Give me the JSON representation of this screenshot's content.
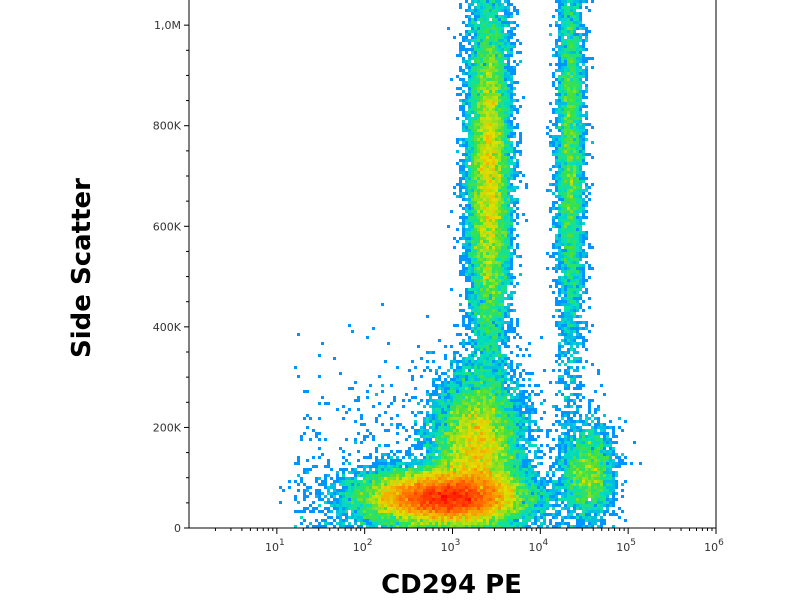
{
  "chart_data": {
    "type": "scatter",
    "title": "",
    "xlabel": "CD294 PE",
    "ylabel": "Side Scatter",
    "x_scale": "log",
    "xlim": [
      1,
      1000000
    ],
    "ylim": [
      0,
      1050000
    ],
    "x_ticks": [
      {
        "value": 10,
        "base": "10",
        "exp": "1"
      },
      {
        "value": 100,
        "base": "10",
        "exp": "2"
      },
      {
        "value": 1000,
        "base": "10",
        "exp": "3"
      },
      {
        "value": 10000,
        "base": "10",
        "exp": "4"
      },
      {
        "value": 100000,
        "base": "10",
        "exp": "5"
      },
      {
        "value": 1000000,
        "base": "10",
        "exp": "6"
      }
    ],
    "y_ticks": [
      {
        "value": 0,
        "label": "0"
      },
      {
        "value": 200000,
        "label": "200K"
      },
      {
        "value": 400000,
        "label": "400K"
      },
      {
        "value": 600000,
        "label": "600K"
      },
      {
        "value": 800000,
        "label": "800K"
      },
      {
        "value": 1000000,
        "label": "1,0M"
      }
    ],
    "grid": false,
    "legend": "none",
    "colormap": [
      "#0000ff",
      "#00a0ff",
      "#00e0c0",
      "#40e040",
      "#e0e000",
      "#ff8000",
      "#ff0000"
    ],
    "populations": [
      {
        "x_center": 800,
        "y_center": 60000,
        "x_spread_decades": 0.45,
        "y_spread": 28000,
        "relative_density": 1.0
      },
      {
        "x_center": 1900,
        "y_center": 160000,
        "x_spread_decades": 0.25,
        "y_spread": 70000,
        "relative_density": 0.45
      },
      {
        "x_center": 2600,
        "y_center": 700000,
        "x_spread_decades": 0.12,
        "y_spread": 190000,
        "relative_density": 0.55
      },
      {
        "x_center": 22000,
        "y_center": 760000,
        "x_spread_decades": 0.08,
        "y_spread": 230000,
        "relative_density": 0.2
      },
      {
        "x_center": 35000,
        "y_center": 110000,
        "x_spread_decades": 0.15,
        "y_spread": 45000,
        "relative_density": 0.1
      }
    ]
  }
}
